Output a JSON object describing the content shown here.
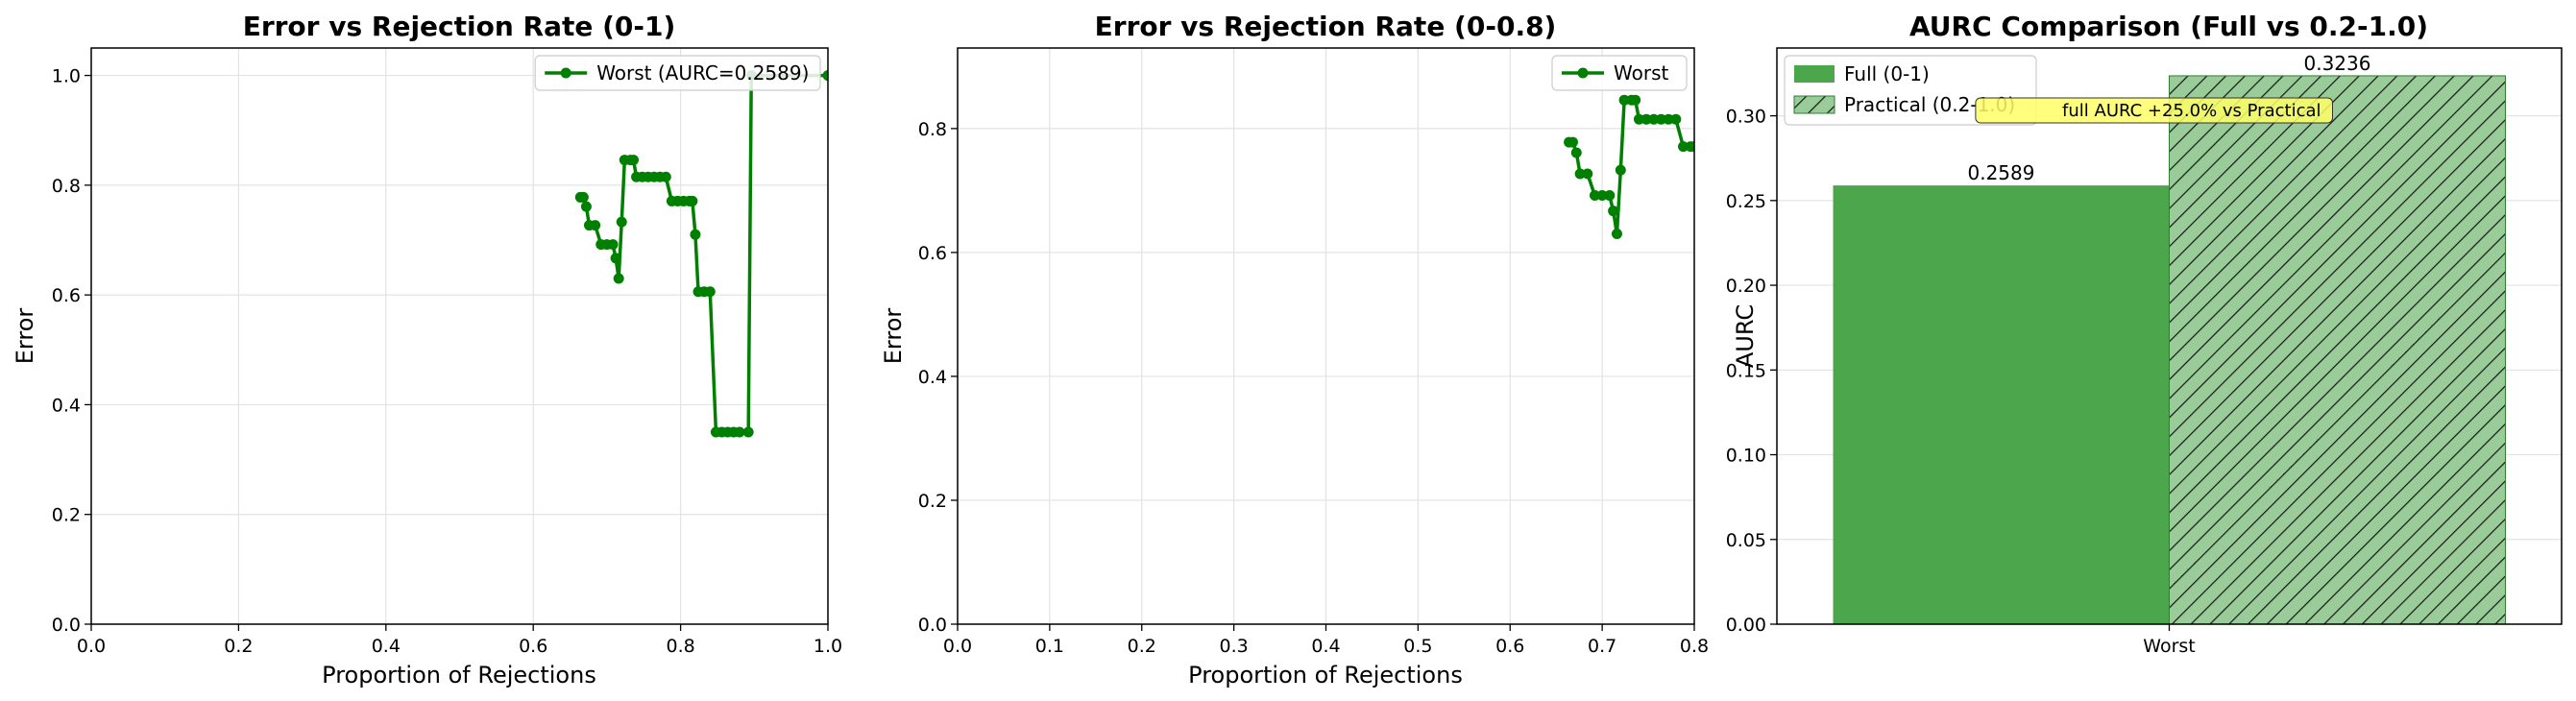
{
  "chart_data": [
    {
      "type": "line",
      "title": "Error vs Rejection Rate (0-1)",
      "xlabel": "Proportion of Rejections",
      "ylabel": "Error",
      "xlim": [
        0,
        1
      ],
      "ylim": [
        0,
        1.05
      ],
      "xticks": [
        "0.0",
        "0.2",
        "0.4",
        "0.6",
        "0.8",
        "1.0"
      ],
      "yticks": [
        "0.0",
        "0.2",
        "0.4",
        "0.6",
        "0.8",
        "1.0"
      ],
      "grid": true,
      "legend_position": "top-right",
      "series": [
        {
          "name": "Worst (AURC=0.2589)",
          "color": "#008000",
          "x": [
            0.664,
            0.668,
            0.672,
            0.676,
            0.684,
            0.692,
            0.7,
            0.708,
            0.712,
            0.716,
            0.72,
            0.724,
            0.732,
            0.736,
            0.74,
            0.748,
            0.756,
            0.764,
            0.772,
            0.78,
            0.788,
            0.796,
            0.804,
            0.812,
            0.816,
            0.82,
            0.824,
            0.832,
            0.84,
            0.848,
            0.856,
            0.864,
            0.872,
            0.88,
            0.892,
            0.896,
            1.0
          ],
          "y": [
            0.778,
            0.778,
            0.761,
            0.727,
            0.727,
            0.692,
            0.692,
            0.692,
            0.667,
            0.63,
            0.733,
            0.846,
            0.846,
            0.846,
            0.815,
            0.815,
            0.815,
            0.815,
            0.815,
            0.815,
            0.771,
            0.771,
            0.771,
            0.771,
            0.771,
            0.71,
            0.606,
            0.606,
            0.606,
            0.35,
            0.35,
            0.35,
            0.35,
            0.35,
            0.35,
            1.0,
            1.0
          ]
        }
      ]
    },
    {
      "type": "line",
      "title": "Error vs Rejection Rate (0-0.8)",
      "xlabel": "Proportion of Rejections",
      "ylabel": "Error",
      "xlim": [
        0,
        0.8
      ],
      "ylim": [
        0,
        0.93
      ],
      "xticks": [
        "0.0",
        "0.1",
        "0.2",
        "0.3",
        "0.4",
        "0.5",
        "0.6",
        "0.7",
        "0.8"
      ],
      "yticks": [
        "0.0",
        "0.2",
        "0.4",
        "0.6",
        "0.8"
      ],
      "grid": true,
      "legend_position": "top-right",
      "series": [
        {
          "name": "Worst",
          "color": "#008000",
          "x": [
            0.664,
            0.668,
            0.672,
            0.676,
            0.684,
            0.692,
            0.7,
            0.708,
            0.712,
            0.716,
            0.72,
            0.724,
            0.732,
            0.736,
            0.74,
            0.748,
            0.756,
            0.764,
            0.772,
            0.78,
            0.788,
            0.796,
            0.8
          ],
          "y": [
            0.778,
            0.778,
            0.761,
            0.727,
            0.727,
            0.692,
            0.692,
            0.692,
            0.667,
            0.63,
            0.733,
            0.846,
            0.846,
            0.846,
            0.815,
            0.815,
            0.815,
            0.815,
            0.815,
            0.815,
            0.771,
            0.771,
            0.771
          ]
        }
      ]
    },
    {
      "type": "bar",
      "title": "AURC Comparison (Full vs 0.2-1.0)",
      "xlabel": "",
      "ylabel": "AURC",
      "categories": [
        "Worst"
      ],
      "ylim": [
        0,
        0.34
      ],
      "yticks": [
        "0.00",
        "0.05",
        "0.10",
        "0.15",
        "0.20",
        "0.25",
        "0.30"
      ],
      "grid": true,
      "legend_position": "top-left",
      "series": [
        {
          "name": "Full (0-1)",
          "values": [
            0.2589
          ],
          "color": "#4ca64c",
          "label": "0.2589"
        },
        {
          "name": "Practical (0.2-1.0)",
          "values": [
            0.3236
          ],
          "color": "#99cc99",
          "hatch": true,
          "label": "0.3236"
        }
      ],
      "annotation": "full AURC +25.0% vs Practical",
      "annotation_color": "#ffff66"
    }
  ]
}
